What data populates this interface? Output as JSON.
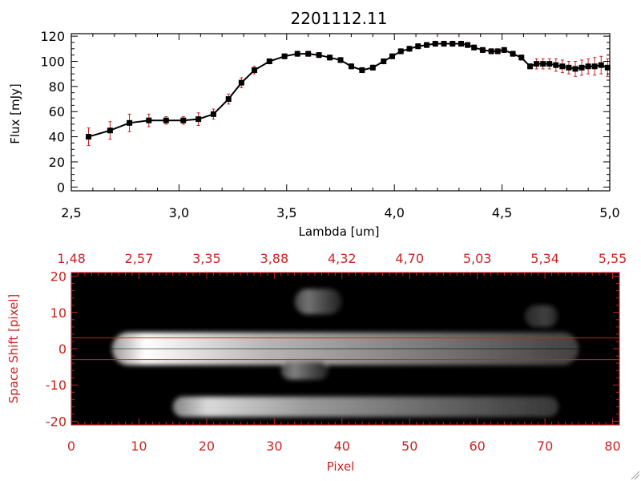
{
  "chart_data": [
    {
      "type": "line",
      "title": "2201112.11",
      "xlabel": "Lambda [um]",
      "ylabel": "Flux [mJy]",
      "xlim": [
        2.5,
        5.0
      ],
      "ylim": [
        -3,
        122
      ],
      "xticks": [
        "2.5",
        "3.0",
        "3.5",
        "4.0",
        "4.5",
        "5.0"
      ],
      "yticks": [
        "0",
        "20",
        "40",
        "60",
        "80",
        "100",
        "120"
      ],
      "grid": false,
      "colors": {
        "line": "#000000",
        "marker": "#000000",
        "errorbar": "#cc2222"
      },
      "series": [
        {
          "x": [
            2.58,
            2.68,
            2.77,
            2.86,
            2.94,
            3.02,
            3.09,
            3.16,
            3.23,
            3.29,
            3.35,
            3.42,
            3.49,
            3.55,
            3.6,
            3.65,
            3.7,
            3.75,
            3.8,
            3.85,
            3.9,
            3.95,
            3.99,
            4.03,
            4.07,
            4.11,
            4.15,
            4.19,
            4.23,
            4.27,
            4.31,
            4.34,
            4.37,
            4.41,
            4.45,
            4.48,
            4.51,
            4.55,
            4.59,
            4.63,
            4.66,
            4.69,
            4.72,
            4.75,
            4.78,
            4.81,
            4.84,
            4.87,
            4.9,
            4.93,
            4.96,
            4.99
          ],
          "y": [
            40,
            45,
            51,
            53,
            53,
            53,
            54,
            58,
            70,
            83,
            93,
            100,
            104,
            106,
            106,
            105,
            103,
            101,
            96,
            93,
            95,
            100,
            104,
            108,
            110,
            112,
            113,
            114,
            114,
            114,
            114,
            113,
            111,
            109,
            108,
            108,
            109,
            106,
            103,
            96,
            98,
            98,
            98,
            97,
            96,
            95,
            94,
            95,
            96,
            96,
            97,
            95
          ],
          "err": [
            7,
            7,
            7,
            5,
            3,
            3,
            5,
            4,
            4,
            4,
            3,
            2,
            2,
            2,
            2,
            2,
            2,
            2,
            2,
            2,
            2,
            2,
            2,
            2,
            2,
            2,
            2,
            2,
            2,
            2,
            2,
            2,
            2,
            2,
            2,
            2,
            2,
            2,
            2,
            2,
            4,
            4,
            4,
            5,
            5,
            5,
            6,
            6,
            6,
            7,
            7,
            7
          ]
        }
      ]
    },
    {
      "type": "heatmap",
      "xlabel": "Pixel",
      "ylabel": "Space Shift [pixel]",
      "xlim": [
        0,
        81
      ],
      "ylim": [
        -21,
        21
      ],
      "xticks": [
        "0",
        "10",
        "20",
        "30",
        "40",
        "50",
        "60",
        "70",
        "80"
      ],
      "yticks": [
        "-20",
        "-10",
        "0",
        "10",
        "20"
      ],
      "top_axis_ticks": [
        "1.48",
        "2.57",
        "3.35",
        "3.88",
        "4.32",
        "4.70",
        "5.03",
        "5.34",
        "5.55"
      ],
      "band_lines": [
        3,
        -3
      ],
      "colors": {
        "axis": "#cc2222",
        "band_line": "#cc2222",
        "background": "#000000"
      },
      "sources": [
        {
          "x": [
            6,
            75
          ],
          "y": 0,
          "peak_x": 11,
          "brightness": 1.0,
          "width_y": 4.5
        },
        {
          "x": [
            15,
            72
          ],
          "y": -16,
          "peak_x": 20,
          "brightness": 0.85,
          "width_y": 2.8
        },
        {
          "x": [
            31,
            38
          ],
          "y": -6,
          "peak_x": 33,
          "brightness": 0.5,
          "width_y": 2.5
        },
        {
          "x": [
            33,
            40
          ],
          "y": 13,
          "peak_x": 35,
          "brightness": 0.45,
          "width_y": 3.5
        },
        {
          "x": [
            67,
            72
          ],
          "y": 9,
          "peak_x": 70,
          "brightness": 0.25,
          "width_y": 3
        }
      ]
    }
  ]
}
